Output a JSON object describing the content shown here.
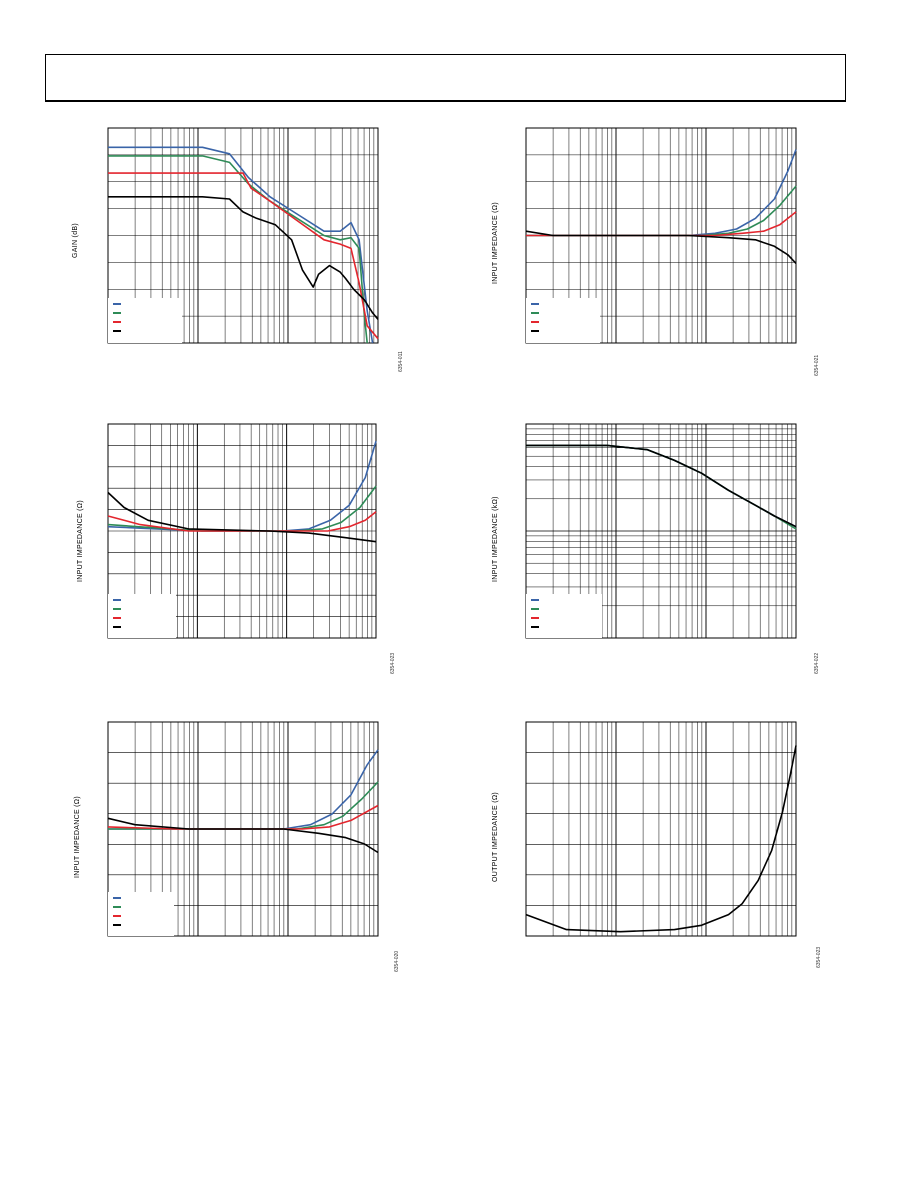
{
  "page": {
    "header_box": true
  },
  "colors": {
    "blue": "#3a64a8",
    "green": "#2e8b57",
    "red": "#e3262e",
    "black": "#000000"
  },
  "chart_data": [
    {
      "id": "p1",
      "type": "line",
      "ylabel": "GAIN (dB)",
      "figure_id": "6354-011",
      "x_scale": "log",
      "x_decades": 3,
      "y_divisions": 8,
      "series": [
        {
          "color": "blue",
          "points": [
            [
              0,
              0.09
            ],
            [
              0.35,
              0.09
            ],
            [
              0.45,
              0.12
            ],
            [
              0.52,
              0.23
            ],
            [
              0.6,
              0.32
            ],
            [
              0.7,
              0.4
            ],
            [
              0.8,
              0.48
            ],
            [
              0.86,
              0.48
            ],
            [
              0.9,
              0.44
            ],
            [
              0.93,
              0.52
            ],
            [
              0.96,
              0.85
            ],
            [
              0.98,
              1.0
            ]
          ]
        },
        {
          "color": "green",
          "points": [
            [
              0,
              0.13
            ],
            [
              0.35,
              0.13
            ],
            [
              0.45,
              0.16
            ],
            [
              0.52,
              0.26
            ],
            [
              0.6,
              0.34
            ],
            [
              0.7,
              0.42
            ],
            [
              0.8,
              0.5
            ],
            [
              0.86,
              0.52
            ],
            [
              0.9,
              0.51
            ],
            [
              0.93,
              0.56
            ],
            [
              0.95,
              0.88
            ],
            [
              0.96,
              1.0
            ]
          ]
        },
        {
          "color": "red",
          "points": [
            [
              0,
              0.21
            ],
            [
              0.5,
              0.21
            ],
            [
              0.53,
              0.28
            ],
            [
              0.6,
              0.34
            ],
            [
              0.7,
              0.43
            ],
            [
              0.8,
              0.52
            ],
            [
              0.86,
              0.54
            ],
            [
              0.9,
              0.56
            ],
            [
              0.93,
              0.72
            ],
            [
              0.96,
              0.92
            ],
            [
              1.0,
              0.98
            ]
          ]
        },
        {
          "color": "black",
          "points": [
            [
              0,
              0.32
            ],
            [
              0.35,
              0.32
            ],
            [
              0.45,
              0.33
            ],
            [
              0.5,
              0.39
            ],
            [
              0.55,
              0.42
            ],
            [
              0.62,
              0.45
            ],
            [
              0.68,
              0.52
            ],
            [
              0.72,
              0.66
            ],
            [
              0.76,
              0.74
            ],
            [
              0.78,
              0.68
            ],
            [
              0.82,
              0.64
            ],
            [
              0.86,
              0.67
            ],
            [
              0.88,
              0.7
            ],
            [
              0.91,
              0.75
            ],
            [
              0.95,
              0.8
            ],
            [
              0.98,
              0.86
            ],
            [
              1.0,
              0.89
            ]
          ]
        }
      ]
    },
    {
      "id": "p2",
      "type": "line",
      "ylabel": "INPUT IMPEDANCE (Ω)",
      "figure_id": "6354-021",
      "x_scale": "log",
      "x_decades": 3,
      "y_divisions": 8,
      "series": [
        {
          "color": "blue",
          "points": [
            [
              0,
              0.5
            ],
            [
              0.6,
              0.5
            ],
            [
              0.7,
              0.49
            ],
            [
              0.78,
              0.47
            ],
            [
              0.85,
              0.42
            ],
            [
              0.92,
              0.33
            ],
            [
              0.97,
              0.2
            ],
            [
              1.0,
              0.1
            ]
          ]
        },
        {
          "color": "green",
          "points": [
            [
              0,
              0.5
            ],
            [
              0.65,
              0.5
            ],
            [
              0.75,
              0.49
            ],
            [
              0.82,
              0.47
            ],
            [
              0.88,
              0.43
            ],
            [
              0.94,
              0.36
            ],
            [
              1.0,
              0.27
            ]
          ]
        },
        {
          "color": "red",
          "points": [
            [
              0,
              0.5
            ],
            [
              0.7,
              0.5
            ],
            [
              0.8,
              0.49
            ],
            [
              0.88,
              0.48
            ],
            [
              0.94,
              0.45
            ],
            [
              1.0,
              0.39
            ]
          ]
        },
        {
          "color": "black",
          "points": [
            [
              0,
              0.48
            ],
            [
              0.1,
              0.5
            ],
            [
              0.6,
              0.5
            ],
            [
              0.75,
              0.51
            ],
            [
              0.85,
              0.52
            ],
            [
              0.92,
              0.55
            ],
            [
              0.97,
              0.59
            ],
            [
              1.0,
              0.63
            ]
          ]
        }
      ]
    },
    {
      "id": "p3",
      "type": "line",
      "ylabel": "INPUT IMPEDANCE (Ω)",
      "figure_id": "6354-023",
      "x_scale": "log",
      "x_decades": 3,
      "y_divisions": 10,
      "series": [
        {
          "color": "blue",
          "points": [
            [
              0,
              0.48
            ],
            [
              0.35,
              0.5
            ],
            [
              0.65,
              0.5
            ],
            [
              0.75,
              0.49
            ],
            [
              0.83,
              0.45
            ],
            [
              0.9,
              0.38
            ],
            [
              0.96,
              0.25
            ],
            [
              1.0,
              0.08
            ]
          ]
        },
        {
          "color": "green",
          "points": [
            [
              0,
              0.47
            ],
            [
              0.35,
              0.5
            ],
            [
              0.7,
              0.5
            ],
            [
              0.8,
              0.49
            ],
            [
              0.87,
              0.46
            ],
            [
              0.94,
              0.39
            ],
            [
              1.0,
              0.29
            ]
          ]
        },
        {
          "color": "red",
          "points": [
            [
              0,
              0.43
            ],
            [
              0.12,
              0.47
            ],
            [
              0.3,
              0.5
            ],
            [
              0.72,
              0.5
            ],
            [
              0.82,
              0.5
            ],
            [
              0.9,
              0.48
            ],
            [
              0.96,
              0.45
            ],
            [
              1.0,
              0.41
            ]
          ]
        },
        {
          "color": "black",
          "points": [
            [
              0,
              0.32
            ],
            [
              0.06,
              0.39
            ],
            [
              0.15,
              0.45
            ],
            [
              0.3,
              0.49
            ],
            [
              0.6,
              0.5
            ],
            [
              0.75,
              0.51
            ],
            [
              0.88,
              0.53
            ],
            [
              1.0,
              0.55
            ]
          ]
        }
      ]
    },
    {
      "id": "p4",
      "type": "line",
      "ylabel": "INPUT IMPEDANCE (kΩ)",
      "figure_id": "6354-022",
      "x_scale": "log",
      "x_decades": 3,
      "y_scale": "log",
      "y_decades": 2,
      "series": [
        {
          "color": "blue",
          "points": [
            [
              0,
              0.1
            ],
            [
              0.3,
              0.1
            ],
            [
              0.45,
              0.12
            ],
            [
              0.55,
              0.17
            ],
            [
              0.65,
              0.23
            ],
            [
              0.75,
              0.31
            ],
            [
              0.85,
              0.38
            ],
            [
              0.92,
              0.43
            ],
            [
              1.0,
              0.48
            ]
          ]
        },
        {
          "color": "green",
          "points": [
            [
              0,
              0.1
            ],
            [
              0.3,
              0.1
            ],
            [
              0.45,
              0.12
            ],
            [
              0.55,
              0.17
            ],
            [
              0.65,
              0.23
            ],
            [
              0.75,
              0.31
            ],
            [
              0.85,
              0.38
            ],
            [
              0.92,
              0.43
            ],
            [
              1.0,
              0.49
            ]
          ]
        },
        {
          "color": "black",
          "points": [
            [
              0,
              0.1
            ],
            [
              0.3,
              0.1
            ],
            [
              0.45,
              0.12
            ],
            [
              0.55,
              0.17
            ],
            [
              0.65,
              0.23
            ],
            [
              0.75,
              0.31
            ],
            [
              0.85,
              0.38
            ],
            [
              0.92,
              0.43
            ],
            [
              1.0,
              0.48
            ]
          ]
        }
      ]
    },
    {
      "id": "p5",
      "type": "line",
      "ylabel": "INPUT IMPEDANCE (Ω)",
      "figure_id": "6354-020",
      "x_scale": "log",
      "x_decades": 3,
      "y_divisions": 7,
      "series": [
        {
          "color": "blue",
          "points": [
            [
              0,
              0.5
            ],
            [
              0.65,
              0.5
            ],
            [
              0.75,
              0.48
            ],
            [
              0.83,
              0.43
            ],
            [
              0.9,
              0.34
            ],
            [
              0.96,
              0.2
            ],
            [
              1.0,
              0.13
            ]
          ]
        },
        {
          "color": "green",
          "points": [
            [
              0,
              0.5
            ],
            [
              0.7,
              0.5
            ],
            [
              0.8,
              0.48
            ],
            [
              0.87,
              0.44
            ],
            [
              0.94,
              0.36
            ],
            [
              1.0,
              0.28
            ]
          ]
        },
        {
          "color": "red",
          "points": [
            [
              0,
              0.49
            ],
            [
              0.25,
              0.5
            ],
            [
              0.72,
              0.5
            ],
            [
              0.82,
              0.49
            ],
            [
              0.9,
              0.46
            ],
            [
              1.0,
              0.39
            ]
          ]
        },
        {
          "color": "black",
          "points": [
            [
              0,
              0.45
            ],
            [
              0.1,
              0.48
            ],
            [
              0.3,
              0.5
            ],
            [
              0.65,
              0.5
            ],
            [
              0.78,
              0.52
            ],
            [
              0.88,
              0.54
            ],
            [
              0.95,
              0.57
            ],
            [
              1.0,
              0.61
            ]
          ]
        }
      ]
    },
    {
      "id": "p6",
      "type": "line",
      "ylabel": "OUTPUT IMPEDANCE (Ω)",
      "figure_id": "6354-023",
      "x_scale": "log",
      "x_decades": 3,
      "y_divisions": 7,
      "series": [
        {
          "color": "black",
          "points": [
            [
              0,
              0.9
            ],
            [
              0.15,
              0.97
            ],
            [
              0.35,
              0.98
            ],
            [
              0.55,
              0.97
            ],
            [
              0.65,
              0.95
            ],
            [
              0.75,
              0.9
            ],
            [
              0.8,
              0.85
            ],
            [
              0.86,
              0.74
            ],
            [
              0.91,
              0.6
            ],
            [
              0.95,
              0.42
            ],
            [
              0.98,
              0.24
            ],
            [
              1.0,
              0.11
            ]
          ]
        }
      ]
    }
  ]
}
